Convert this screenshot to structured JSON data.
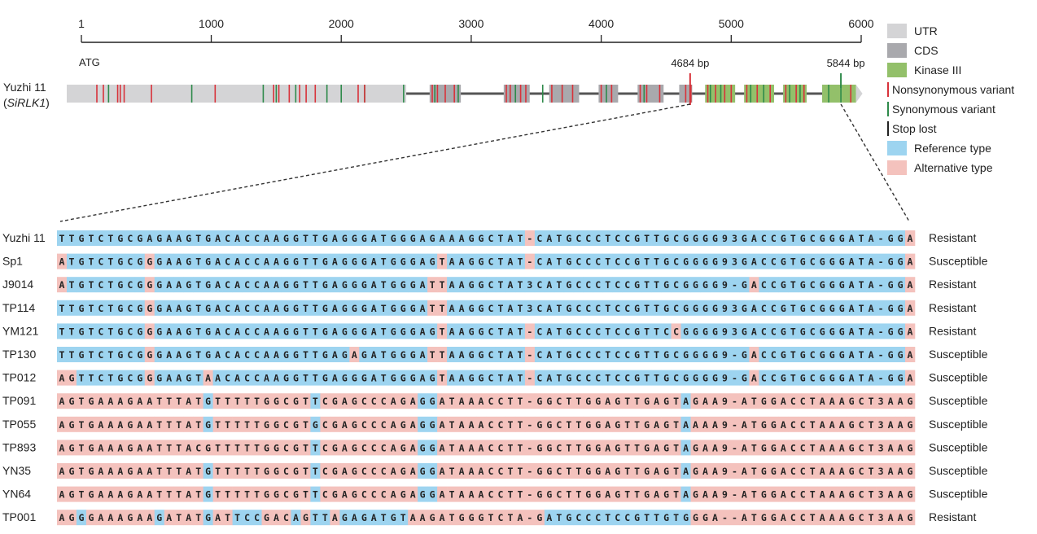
{
  "scale": {
    "ticks": [
      "1",
      "1000",
      "2000",
      "3000",
      "4000",
      "5000",
      "6000"
    ],
    "tick_values": [
      1,
      1000,
      2000,
      3000,
      4000,
      5000,
      6000
    ],
    "min": 1,
    "max": 6000
  },
  "gene": {
    "name_line1": "Yuzhi 11",
    "name_line2": "SiRLK1",
    "start_codon_label": "ATG",
    "marker_left_label": "4684 bp",
    "marker_right_label": "5844 bp",
    "marker_left_value": 4684,
    "marker_right_value": 5844,
    "utr_end": 2500,
    "exons": [
      [
        2680,
        2920
      ],
      [
        3250,
        3450
      ],
      [
        3600,
        3830
      ],
      [
        3980,
        4130
      ],
      [
        4280,
        4480
      ],
      [
        4600,
        4700
      ],
      [
        4800,
        5030
      ],
      [
        5100,
        5330
      ],
      [
        5400,
        5580
      ],
      [
        5700,
        5960
      ]
    ],
    "kinase_regions": [
      [
        4800,
        5030
      ],
      [
        5100,
        5330
      ],
      [
        5400,
        5580
      ],
      [
        5700,
        5960
      ]
    ],
    "nonsyn_variants": [
      120,
      170,
      280,
      300,
      330,
      540,
      1030,
      1480,
      1520,
      1600,
      1680,
      1730,
      1800,
      2130,
      2180,
      2700,
      2740,
      2800,
      2870,
      3270,
      3300,
      3380,
      3420,
      3620,
      3700,
      3780,
      4000,
      4080,
      4300,
      4350,
      4450,
      4650,
      4690,
      4820,
      4880,
      4950,
      5000,
      5120,
      5200,
      5300,
      5420,
      5500,
      5560,
      5920
    ],
    "syn_variants": [
      210,
      850,
      1400,
      1500,
      1650,
      1890,
      2000,
      2180,
      2480,
      2720,
      2900,
      3340,
      3550,
      3700,
      4040,
      4330,
      4840,
      4920,
      5150,
      5250,
      5450,
      5530,
      5750,
      5844
    ],
    "stop_lost": [
      4684
    ]
  },
  "legend": [
    {
      "label": "UTR",
      "kind": "box",
      "color": "#d4d4d6"
    },
    {
      "label": "CDS",
      "kind": "box",
      "color": "#a9a9ad"
    },
    {
      "label": "Kinase III",
      "kind": "box",
      "color": "#93c06a"
    },
    {
      "label": "Nonsynonymous variant",
      "kind": "line",
      "color": "#d8323a"
    },
    {
      "label": "Synonymous variant",
      "kind": "line",
      "color": "#2e8a4a"
    },
    {
      "label": "Stop lost",
      "kind": "line",
      "color": "#222222"
    },
    {
      "label": "Reference type",
      "kind": "box",
      "color": "#9dd4f0"
    },
    {
      "label": "Alternative type",
      "kind": "box",
      "color": "#f4c2bd"
    }
  ],
  "colors": {
    "reference": "#9dd4f0",
    "alternative": "#f4c2bd",
    "utr": "#d4d4d6",
    "cds": "#a9a9ad",
    "kinase": "#93c06a",
    "nonsyn": "#d8323a",
    "syn": "#2e8a4a"
  },
  "alignment": {
    "rows": [
      {
        "name": "Yuzhi 11",
        "seq": "TTGTCTGCGAGAAGTGACACCAAGGTTGAGGGATGGGAGAAAGGCTAT-CATGCCCTCCGTTGCGGGG93GACCGTGCGGGATA-GGA",
        "phenotype": "Resistant",
        "alt": "000000000000000000000000000000000000000000000000100000000000000000000000000000000000000100"
      },
      {
        "name": "Sp1",
        "seq": "ATGTCTGCGGGAAGTGACACCAAGGTTGAGGGATGGGAGTAAGGCTAT-CATGCCCTCCGTTGCGGGG93GACCGTGCGGGATA-GGA",
        "phenotype": "Susceptible",
        "alt": "100000000100000000000000000000000000000100000000100000000000000000000000000000000000000100"
      },
      {
        "name": "J9014",
        "seq": "ATGTCTGCGGGAAGTGACACCAAGGTTGAGGGATGGGATTAAGGCTAT3CATGCCCTCCGTTGCGGGG9-GACCGTGCGGGATA-GGA",
        "phenotype": "Resistant",
        "alt": "100000000100000000000000000000000000001100000000000000000000000000000001000000000000000100"
      },
      {
        "name": "TP114",
        "seq": "TTGTCTGCGGGAAGTGACACCAAGGTTGAGGGATGGGATTAAGGCTAT3CATGCCCTCCGTTGCGGGG93GACCGTGCGGGATA-GGA",
        "phenotype": "Resistant",
        "alt": "000000000100000000000000000000000000001100000000000000000000000000000000000000000000000100"
      },
      {
        "name": "YM121",
        "seq": "TTGTCTGCGGGAAGTGACACCAAGGTTGAGGGATGGGAGTAAGGCTAT-CATGCCCTCCGTTCCGGGG93GACCGTGCGGGATA-GGA",
        "phenotype": "Resistant",
        "alt": "000000000100000000000000000000000000000100000000100000000000000100000000000000000000000100"
      },
      {
        "name": "TP130",
        "seq": "TTGTCTGCGGGAAGTGACACCAAGGTTGAGAGATGGGATTAAGGCTAT-CATGCCCTCCGTTGCGGGG9-GACCGTGCGGGATA-GGA",
        "phenotype": "Susceptible",
        "alt": "000000000100000000000000000000100000001100000000100000000000000000000001000000000000000100"
      },
      {
        "name": "TP012",
        "seq": "AGTTCTGCGGGAAGTAACACCAAGGTTGAGGGATGGGAGTAAGGCTAT-CATGCCCTCCGTTGCGGGG9-GACCGTGCGGGATA-GGA",
        "phenotype": "Susceptible",
        "alt": "110000000100000100000000000000000000000100000000100000000000000000000001000000000000000100"
      },
      {
        "name": "TP091",
        "seq": "AGTGAAAGAATTTATGTTTTTGGCGTTCGAGCCCAGAGGATAAACCTT-GGCTTGGAGTTGAGTAGAA9-ATGGACCTAAAGCT3AAG",
        "phenotype": "Susceptible",
        "alt": "111111111111111011111111110111111111100111111111111111111111111101111111111111111111111111"
      },
      {
        "name": "TP055",
        "seq": "AGTGAAAGAATTTATGTTTTTGGCGTGCGAGCCCAGAGGATAAACCTT-GGCTTGGAGTTGAGTAAAA9-ATGGACCTAAAGCT3AAG",
        "phenotype": "Susceptible",
        "alt": "111111111111111011111111110111111111100111111111111111111111111101111111111111111111111111"
      },
      {
        "name": "TP893",
        "seq": "AGTGAAAGAATTTACGTTTTTGGCGTTCGAGCCCAGAGGATAAACCTT-GGCTTGGAGTTGAGTAGAA9-ATGGACCTAAAGCT3AAG",
        "phenotype": "Susceptible",
        "alt": "111111111111111111111111110111111111100111111111111111111111111101111111111111111111111111"
      },
      {
        "name": "YN35",
        "seq": "AGTGAAAGAATTTATGTTTTTGGCGTTCGAGCCCAGAGGATAAACCTT-GGCTTGGAGTTGAGTAGAA9-ATGGACCTAAAGCT3AAG",
        "phenotype": "Susceptible",
        "alt": "111111111111111011111111110111111111100111111111111111111111111101111111111111111111111111"
      },
      {
        "name": "YN64",
        "seq": "AGTGAAAGAATTTATGTTTTTGGCGTTCGAGCCCAGAGGATAAACCTT-GGCTTGGAGTTGAGTAGAA9-ATGGACCTAAAGCT3AAG",
        "phenotype": "Susceptible",
        "alt": "111111111111111011111111110111111111100111111111111111111111111101111111111111111111111111"
      },
      {
        "name": "TP001",
        "seq": "AGGGAAAGAAGATATGATTCCGACAGTTAGAGATGTAAGATGGGTCTA-GATGCCCTCCGTTGTGGGA--ATGGACCTAAAGCT3AAG",
        "phenotype": "Resistant",
        "alt": "110111111101111011000111010010000000111111111111110000000000000001111111111111111111111111"
      }
    ]
  }
}
